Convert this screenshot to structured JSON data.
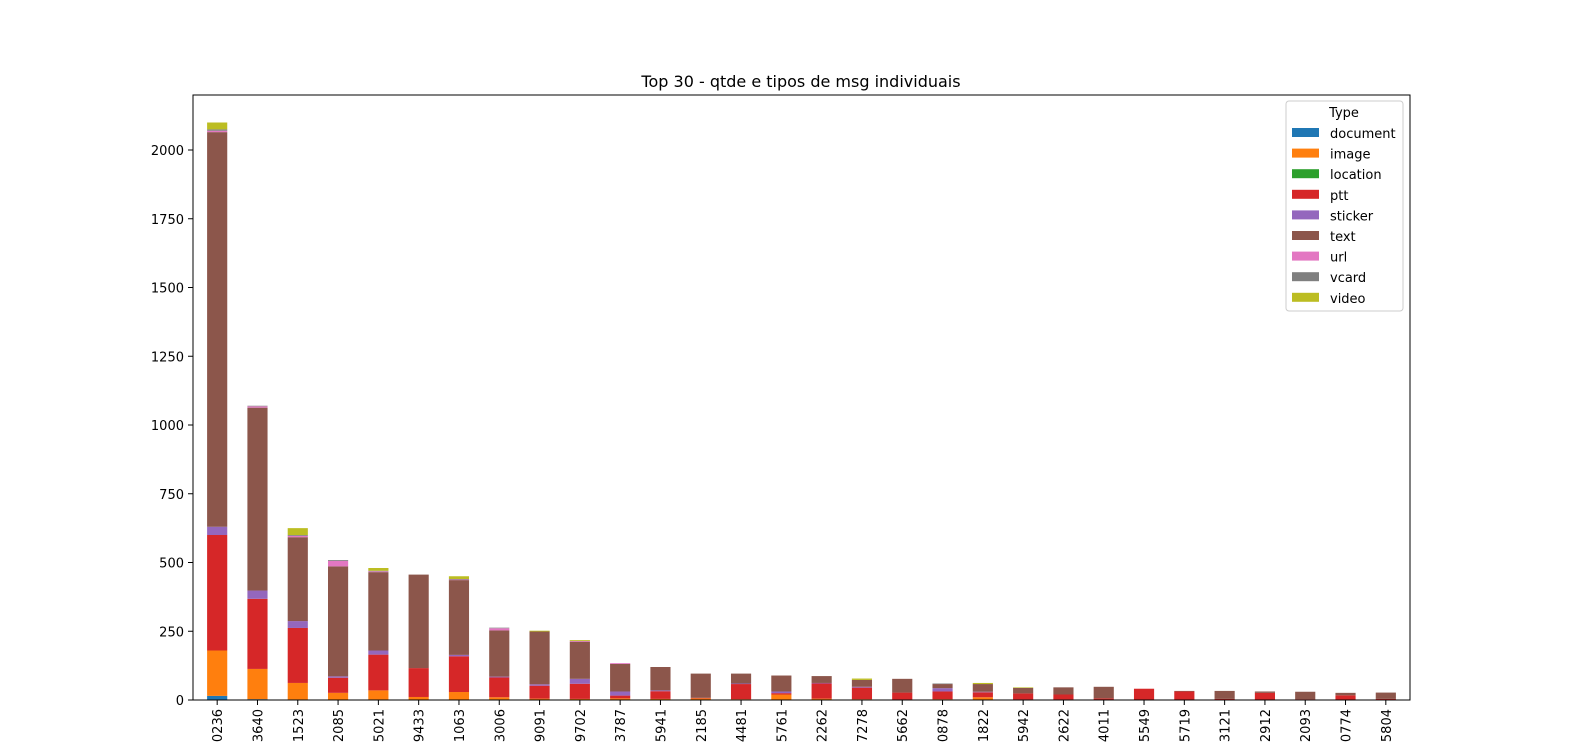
{
  "chart_data": {
    "type": "bar",
    "stacked": true,
    "title": "Top 30 - qtde e tipos de msg individuais",
    "xlabel": "",
    "ylabel": "",
    "ylim": [
      0,
      2200
    ],
    "yticks": [
      0,
      250,
      500,
      750,
      1000,
      1250,
      1500,
      1750,
      2000
    ],
    "grid": false,
    "legend": {
      "title": "Type",
      "placement": "top-right"
    },
    "categories": [
      "0236",
      "3640",
      "1523",
      "2085",
      "5021",
      "9433",
      "1063",
      "3006",
      "9091",
      "9702",
      "3787",
      "5941",
      "2185",
      "4481",
      "5761",
      "2262",
      "7278",
      "5662",
      "0878",
      "1822",
      "5942",
      "2622",
      "4011",
      "5549",
      "5719",
      "3121",
      "2912",
      "2093",
      "0774",
      "5804"
    ],
    "series": [
      {
        "name": "document",
        "color": "#1f77b4",
        "values": [
          15,
          3,
          2,
          1,
          2,
          1,
          1,
          2,
          1,
          1,
          1,
          1,
          1,
          0,
          0,
          0,
          0,
          0,
          0,
          0,
          0,
          0,
          0,
          0,
          0,
          0,
          0,
          0,
          0,
          0
        ]
      },
      {
        "name": "image",
        "color": "#ff7f0e",
        "values": [
          165,
          110,
          60,
          25,
          33,
          10,
          28,
          8,
          4,
          3,
          5,
          3,
          5,
          3,
          20,
          5,
          3,
          2,
          3,
          10,
          2,
          2,
          1,
          1,
          1,
          1,
          1,
          1,
          1,
          1
        ]
      },
      {
        "name": "location",
        "color": "#2ca02c",
        "values": [
          0,
          0,
          0,
          0,
          0,
          0,
          0,
          0,
          0,
          0,
          0,
          0,
          0,
          0,
          0,
          0,
          0,
          0,
          0,
          0,
          0,
          0,
          0,
          0,
          0,
          0,
          0,
          0,
          0,
          0
        ]
      },
      {
        "name": "ptt",
        "color": "#d62728",
        "values": [
          420,
          255,
          200,
          55,
          130,
          105,
          130,
          72,
          47,
          55,
          10,
          28,
          2,
          55,
          5,
          55,
          42,
          25,
          28,
          18,
          22,
          18,
          5,
          40,
          30,
          3,
          25,
          2,
          16,
          3
        ]
      },
      {
        "name": "sticker",
        "color": "#9467bd",
        "values": [
          30,
          30,
          25,
          5,
          15,
          0,
          5,
          3,
          5,
          18,
          15,
          3,
          0,
          2,
          6,
          2,
          3,
          0,
          12,
          2,
          0,
          0,
          0,
          0,
          0,
          0,
          0,
          0,
          0,
          0
        ]
      },
      {
        "name": "text",
        "color": "#8c564b",
        "values": [
          1435,
          665,
          305,
          400,
          285,
          340,
          272,
          168,
          192,
          135,
          100,
          85,
          88,
          36,
          58,
          25,
          25,
          50,
          15,
          28,
          20,
          26,
          42,
          0,
          2,
          29,
          5,
          27,
          9,
          23
        ]
      },
      {
        "name": "url",
        "color": "#e377c2",
        "values": [
          5,
          5,
          5,
          20,
          3,
          0,
          2,
          8,
          0,
          3,
          3,
          0,
          0,
          0,
          0,
          0,
          0,
          0,
          0,
          0,
          0,
          0,
          0,
          0,
          0,
          0,
          0,
          0,
          0,
          0
        ]
      },
      {
        "name": "vcard",
        "color": "#7f7f7f",
        "values": [
          5,
          2,
          3,
          3,
          2,
          0,
          2,
          2,
          0,
          0,
          0,
          0,
          0,
          0,
          0,
          0,
          0,
          0,
          2,
          0,
          0,
          0,
          0,
          0,
          0,
          0,
          0,
          0,
          0,
          0
        ]
      },
      {
        "name": "video",
        "color": "#bcbd22",
        "values": [
          25,
          0,
          25,
          0,
          10,
          0,
          10,
          0,
          3,
          3,
          0,
          0,
          0,
          0,
          0,
          0,
          5,
          0,
          0,
          4,
          2,
          0,
          0,
          0,
          0,
          0,
          0,
          0,
          0,
          0
        ]
      }
    ]
  }
}
